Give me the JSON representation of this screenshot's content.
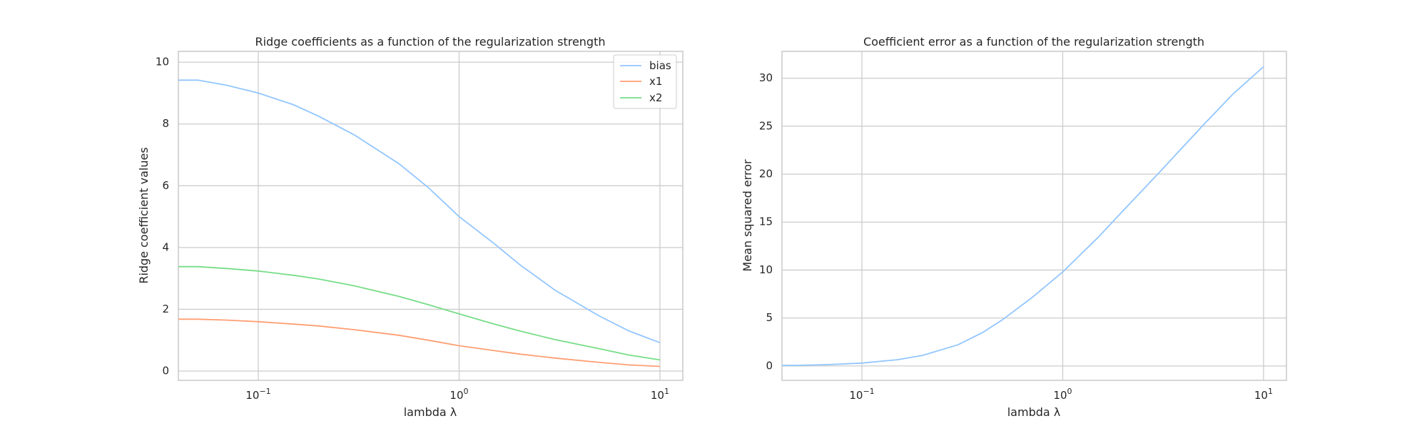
{
  "chart_data": [
    {
      "type": "line",
      "title": "Ridge coefficients as a function of the regularization strength",
      "xlabel": "lambda λ",
      "ylabel": "Ridge coefficient values",
      "xscale": "log",
      "xlim": [
        0.04,
        13
      ],
      "ylim": [
        -0.3,
        10.35
      ],
      "xticks": [
        {
          "value": 0.1,
          "base": "10",
          "exp": "−1"
        },
        {
          "value": 1,
          "base": "10",
          "exp": "0"
        },
        {
          "value": 10,
          "base": "10",
          "exp": "1"
        }
      ],
      "yticks": [
        {
          "value": 0,
          "label": "0"
        },
        {
          "value": 2,
          "label": "2"
        },
        {
          "value": 4,
          "label": "4"
        },
        {
          "value": 6,
          "label": "6"
        },
        {
          "value": 8,
          "label": "8"
        },
        {
          "value": 10,
          "label": "10"
        }
      ],
      "grid": true,
      "legend": "top-right",
      "x": [
        0.04,
        0.05,
        0.07,
        0.1,
        0.15,
        0.2,
        0.3,
        0.5,
        0.7,
        1,
        1.5,
        2,
        3,
        5,
        7,
        10
      ],
      "series": [
        {
          "name": "bias",
          "color": "#92c6ff",
          "values": [
            9.42,
            9.42,
            9.25,
            9.0,
            8.62,
            8.25,
            7.65,
            6.72,
            5.95,
            5.0,
            4.12,
            3.45,
            2.62,
            1.78,
            1.3,
            0.92
          ]
        },
        {
          "name": "x1",
          "color": "#ff9f73",
          "values": [
            1.68,
            1.68,
            1.65,
            1.6,
            1.52,
            1.46,
            1.34,
            1.16,
            1.0,
            0.82,
            0.66,
            0.55,
            0.42,
            0.28,
            0.2,
            0.15
          ]
        },
        {
          "name": "x2",
          "color": "#77dd88",
          "values": [
            3.38,
            3.38,
            3.32,
            3.24,
            3.1,
            2.98,
            2.76,
            2.42,
            2.15,
            1.85,
            1.52,
            1.3,
            1.02,
            0.72,
            0.52,
            0.36
          ]
        }
      ]
    },
    {
      "type": "line",
      "title": "Coefficient error as a function of the regularization strength",
      "xlabel": "lambda λ",
      "ylabel": "Mean squared error",
      "xscale": "log",
      "xlim": [
        0.04,
        13
      ],
      "ylim": [
        -1.5,
        32.8
      ],
      "xticks": [
        {
          "value": 0.1,
          "base": "10",
          "exp": "−1"
        },
        {
          "value": 1,
          "base": "10",
          "exp": "0"
        },
        {
          "value": 10,
          "base": "10",
          "exp": "1"
        }
      ],
      "yticks": [
        {
          "value": 0,
          "label": "0"
        },
        {
          "value": 5,
          "label": "5"
        },
        {
          "value": 10,
          "label": "10"
        },
        {
          "value": 15,
          "label": "15"
        },
        {
          "value": 20,
          "label": "20"
        },
        {
          "value": 25,
          "label": "25"
        },
        {
          "value": 30,
          "label": "30"
        }
      ],
      "grid": true,
      "x": [
        0.04,
        0.05,
        0.07,
        0.1,
        0.15,
        0.2,
        0.3,
        0.4,
        0.5,
        0.7,
        1,
        1.5,
        2,
        3,
        5,
        7,
        10
      ],
      "series": [
        {
          "color": "#92c6ff",
          "values": [
            0.05,
            0.07,
            0.15,
            0.3,
            0.65,
            1.1,
            2.2,
            3.5,
            4.8,
            7.1,
            9.8,
            13.4,
            16.2,
            20.1,
            25.1,
            28.3,
            31.2
          ]
        }
      ]
    }
  ]
}
